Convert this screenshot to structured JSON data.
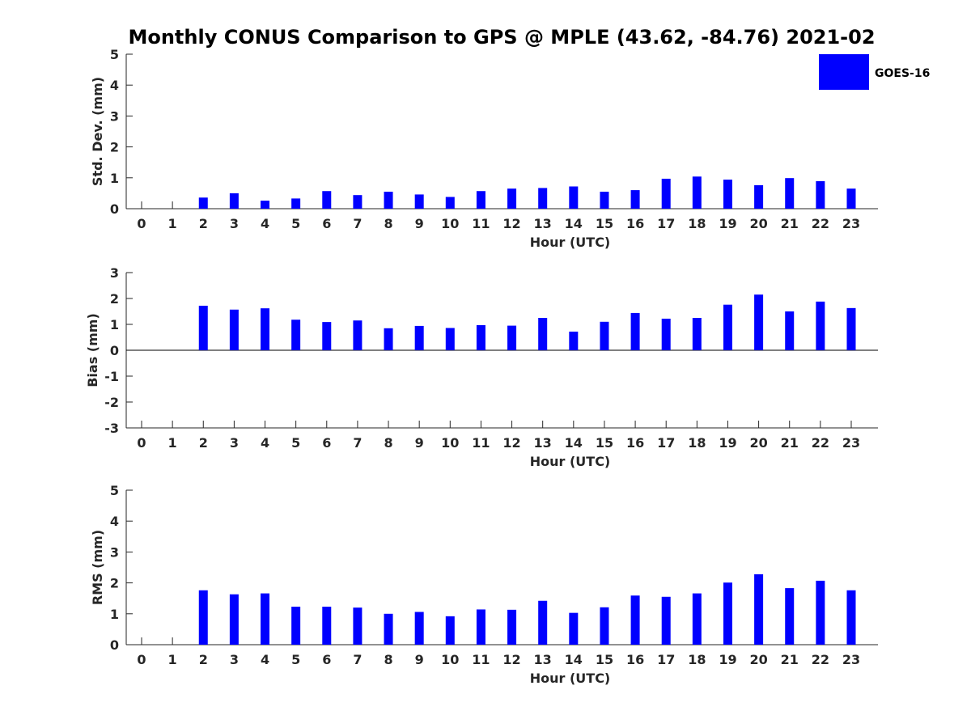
{
  "title": "Monthly CONUS Comparison to GPS @ MPLE (43.62, -84.76) 2021-02",
  "legend": {
    "label": "GOES-16",
    "color": "#0000ff"
  },
  "chart_data": [
    {
      "type": "bar",
      "name": "std-dev",
      "xlabel": "Hour (UTC)",
      "ylabel": "Std. Dev. (mm)",
      "ylim": [
        0,
        5
      ],
      "yticks": [
        0,
        1,
        2,
        3,
        4,
        5
      ],
      "categories": [
        "0",
        "1",
        "2",
        "3",
        "4",
        "5",
        "6",
        "7",
        "8",
        "9",
        "10",
        "11",
        "12",
        "13",
        "14",
        "15",
        "16",
        "17",
        "18",
        "19",
        "20",
        "21",
        "22",
        "23"
      ],
      "series": [
        {
          "name": "GOES-16",
          "color": "#0000ff",
          "values": [
            null,
            null,
            0.36,
            0.5,
            0.26,
            0.33,
            0.57,
            0.44,
            0.55,
            0.46,
            0.38,
            0.57,
            0.65,
            0.67,
            0.72,
            0.55,
            0.6,
            0.97,
            1.04,
            0.94,
            0.76,
            0.99,
            0.89,
            0.65
          ]
        }
      ]
    },
    {
      "type": "bar",
      "name": "bias",
      "xlabel": "Hour (UTC)",
      "ylabel": "Bias (mm)",
      "ylim": [
        -3,
        3
      ],
      "yticks": [
        -3,
        -2,
        -1,
        0,
        1,
        2,
        3
      ],
      "zero_line": true,
      "categories": [
        "0",
        "1",
        "2",
        "3",
        "4",
        "5",
        "6",
        "7",
        "8",
        "9",
        "10",
        "11",
        "12",
        "13",
        "14",
        "15",
        "16",
        "17",
        "18",
        "19",
        "20",
        "21",
        "22",
        "23"
      ],
      "series": [
        {
          "name": "GOES-16",
          "color": "#0000ff",
          "values": [
            null,
            null,
            1.72,
            1.57,
            1.62,
            1.18,
            1.09,
            1.15,
            0.85,
            0.94,
            0.86,
            0.97,
            0.95,
            1.25,
            0.72,
            1.1,
            1.44,
            1.22,
            1.25,
            1.76,
            2.15,
            1.5,
            1.88,
            1.63
          ]
        }
      ]
    },
    {
      "type": "bar",
      "name": "rms",
      "xlabel": "Hour (UTC)",
      "ylabel": "RMS (mm)",
      "ylim": [
        0,
        5
      ],
      "yticks": [
        0,
        1,
        2,
        3,
        4,
        5
      ],
      "categories": [
        "0",
        "1",
        "2",
        "3",
        "4",
        "5",
        "6",
        "7",
        "8",
        "9",
        "10",
        "11",
        "12",
        "13",
        "14",
        "15",
        "16",
        "17",
        "18",
        "19",
        "20",
        "21",
        "22",
        "23"
      ],
      "series": [
        {
          "name": "GOES-16",
          "color": "#0000ff",
          "values": [
            null,
            null,
            1.76,
            1.63,
            1.66,
            1.23,
            1.23,
            1.2,
            1.0,
            1.06,
            0.92,
            1.14,
            1.13,
            1.42,
            1.03,
            1.21,
            1.59,
            1.55,
            1.66,
            2.01,
            2.28,
            1.83,
            2.07,
            1.76
          ]
        }
      ]
    }
  ]
}
